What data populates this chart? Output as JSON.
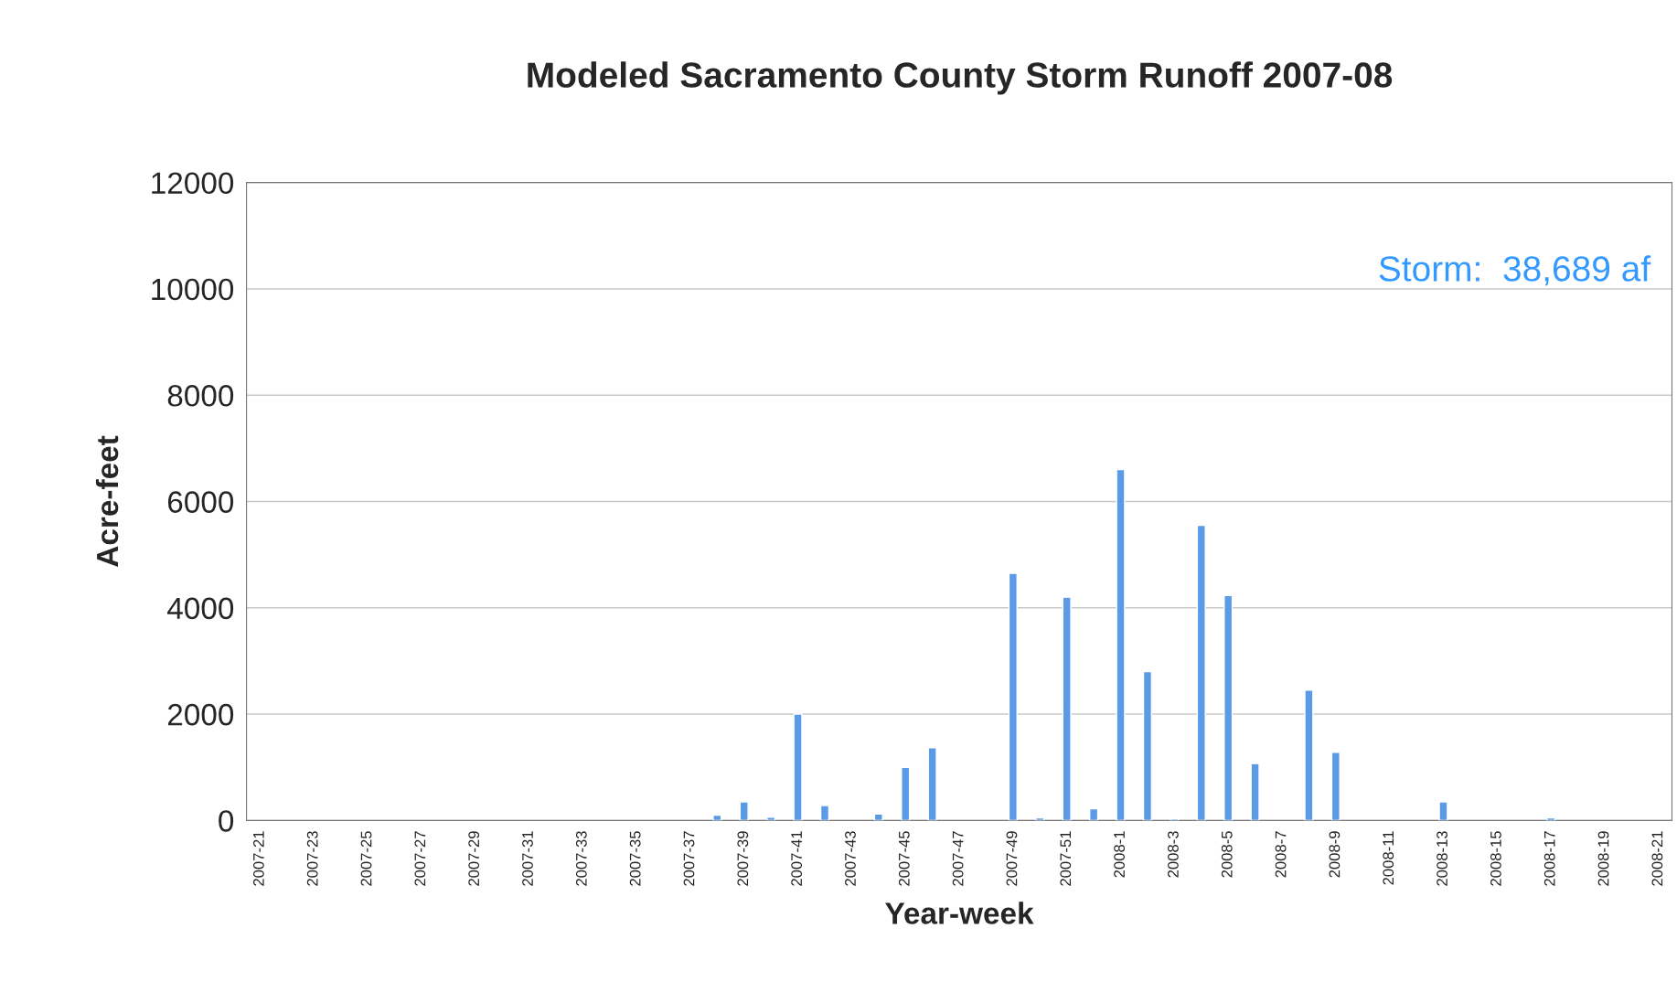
{
  "chart_data": {
    "type": "bar",
    "title": "Modeled Sacramento County Storm Runoff 2007-08",
    "xlabel": "Year-week",
    "ylabel": "Acre-feet",
    "categories": [
      "2007-21",
      null,
      "2007-23",
      null,
      "2007-25",
      null,
      "2007-27",
      null,
      "2007-29",
      null,
      "2007-31",
      null,
      "2007-33",
      null,
      "2007-35",
      null,
      "2007-37",
      null,
      "2007-39",
      null,
      "2007-41",
      null,
      "2007-43",
      null,
      "2007-45",
      null,
      "2007-47",
      null,
      "2007-49",
      null,
      "2007-51",
      null,
      "2008-1",
      null,
      "2008-3",
      null,
      "2008-5",
      null,
      "2008-7",
      null,
      "2008-9",
      null,
      "2008-11",
      null,
      "2008-13",
      null,
      "2008-15",
      null,
      "2008-17",
      null,
      "2008-19",
      null,
      "2008-21"
    ],
    "values": [
      null,
      null,
      null,
      null,
      null,
      null,
      null,
      null,
      null,
      null,
      null,
      null,
      null,
      null,
      null,
      null,
      null,
      100,
      350,
      60,
      2000,
      280,
      null,
      120,
      1000,
      1370,
      null,
      null,
      4650,
      50,
      4200,
      220,
      6600,
      2800,
      30,
      5550,
      4230,
      1070,
      null,
      2450,
      1280,
      null,
      null,
      null,
      350,
      null,
      null,
      null,
      50,
      null,
      null,
      null,
      null
    ],
    "color": "#5b9be6",
    "ylim": [
      0,
      12000
    ],
    "yticks": [
      0,
      2000,
      4000,
      6000,
      8000,
      10000,
      12000
    ],
    "grid": "y",
    "annotations": [
      "Storm:  38,689 af"
    ]
  }
}
